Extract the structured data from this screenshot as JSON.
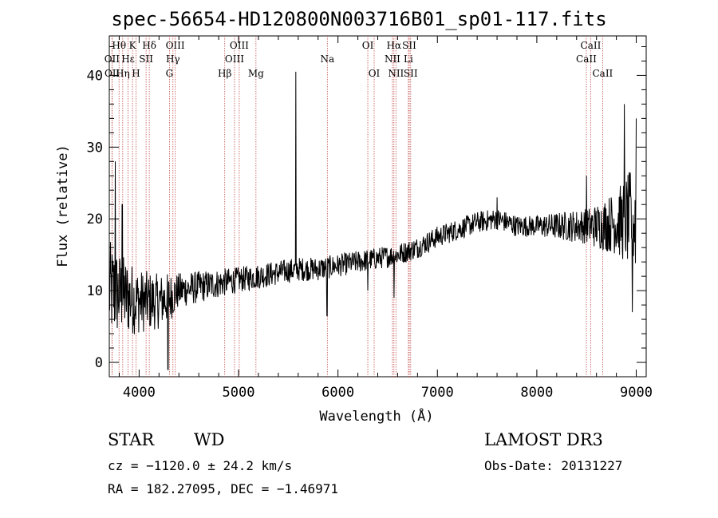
{
  "chart_data": {
    "type": "line",
    "title": "spec-56654-HD120800N003716B01_sp01-117.fits",
    "xlabel": "Wavelength (Å)",
    "ylabel": "Flux (relative)",
    "xlim": [
      3700,
      9100
    ],
    "ylim": [
      -2,
      45.5
    ],
    "xticks": [
      4000,
      5000,
      6000,
      7000,
      8000,
      9000
    ],
    "xtick_labels": [
      "4000",
      "5000",
      "6000",
      "7000",
      "8000",
      "9000"
    ],
    "yticks": [
      0,
      10,
      20,
      30,
      40
    ],
    "ytick_labels": [
      "0",
      "10",
      "20",
      "30",
      "40"
    ],
    "series": [
      {
        "name": "flux",
        "color": "#000000",
        "continuum": [
          [
            3700,
            10
          ],
          [
            3800,
            9.5
          ],
          [
            3900,
            9
          ],
          [
            4000,
            8.5
          ],
          [
            4100,
            8.5
          ],
          [
            4200,
            8.5
          ],
          [
            4300,
            9
          ],
          [
            4400,
            10
          ],
          [
            4600,
            10.5
          ],
          [
            4800,
            11
          ],
          [
            5000,
            11.5
          ],
          [
            5200,
            12
          ],
          [
            5400,
            12.5
          ],
          [
            5600,
            13
          ],
          [
            5800,
            13
          ],
          [
            6000,
            13.5
          ],
          [
            6200,
            14
          ],
          [
            6400,
            14.5
          ],
          [
            6600,
            15
          ],
          [
            6800,
            16
          ],
          [
            7000,
            17.5
          ],
          [
            7200,
            18.5
          ],
          [
            7400,
            19.5
          ],
          [
            7600,
            20
          ],
          [
            7800,
            19
          ],
          [
            8000,
            19
          ],
          [
            8200,
            19
          ],
          [
            8400,
            19
          ],
          [
            8600,
            19
          ],
          [
            8800,
            19.5
          ],
          [
            9000,
            20
          ]
        ],
        "noise_envelope": [
          [
            3700,
            7
          ],
          [
            3800,
            6
          ],
          [
            4000,
            4.5
          ],
          [
            4300,
            3.5
          ],
          [
            4400,
            2.5
          ],
          [
            5000,
            1.8
          ],
          [
            6000,
            1.6
          ],
          [
            7000,
            1.5
          ],
          [
            8000,
            1.5
          ],
          [
            8500,
            2.5
          ],
          [
            8800,
            4.5
          ],
          [
            9000,
            8
          ]
        ],
        "features": [
          {
            "x": 3760,
            "y": 28
          },
          {
            "x": 3830,
            "y": 22
          },
          {
            "x": 4290,
            "y": -1
          },
          {
            "x": 5577,
            "y": 40.5
          },
          {
            "x": 5890,
            "y": 6.5
          },
          {
            "x": 6300,
            "y": 10
          },
          {
            "x": 6563,
            "y": 9
          },
          {
            "x": 7600,
            "y": 23
          },
          {
            "x": 8500,
            "y": 26
          },
          {
            "x": 8880,
            "y": 36
          },
          {
            "x": 8960,
            "y": 7
          },
          {
            "x": 9000,
            "y": 34
          }
        ]
      }
    ],
    "lines": [
      {
        "label": "Hθ",
        "wavelength": 3798,
        "row": 0
      },
      {
        "label": "OII",
        "wavelength": 3727,
        "row": 1
      },
      {
        "label": "OII",
        "wavelength": 3729,
        "row": 2
      },
      {
        "label": "Hη",
        "wavelength": 3835,
        "row": 2
      },
      {
        "label": "Hε",
        "wavelength": 3889,
        "row": 1
      },
      {
        "label": "K",
        "wavelength": 3934,
        "row": 0
      },
      {
        "label": "SII",
        "wavelength": 4070,
        "row": 1
      },
      {
        "label": "H",
        "wavelength": 3969,
        "row": 2
      },
      {
        "label": "Hδ",
        "wavelength": 4102,
        "row": 0
      },
      {
        "label": "OIII",
        "wavelength": 4363,
        "row": 0
      },
      {
        "label": "Hγ",
        "wavelength": 4340,
        "row": 1
      },
      {
        "label": "G",
        "wavelength": 4305,
        "row": 2
      },
      {
        "label": "Hβ",
        "wavelength": 4861,
        "row": 2
      },
      {
        "label": "OIII",
        "wavelength": 5007,
        "row": 0
      },
      {
        "label": "OIII",
        "wavelength": 4959,
        "row": 1
      },
      {
        "label": "Mg",
        "wavelength": 5175,
        "row": 2
      },
      {
        "label": "Na",
        "wavelength": 5893,
        "row": 1
      },
      {
        "label": "OI",
        "wavelength": 6300,
        "row": 0
      },
      {
        "label": "OI",
        "wavelength": 6364,
        "row": 2
      },
      {
        "label": "Hα",
        "wavelength": 6563,
        "row": 0
      },
      {
        "label": "NII",
        "wavelength": 6548,
        "row": 1
      },
      {
        "label": "NII",
        "wavelength": 6583,
        "row": 2
      },
      {
        "label": "SII",
        "wavelength": 6717,
        "row": 0
      },
      {
        "label": "Li",
        "wavelength": 6708,
        "row": 1
      },
      {
        "label": "SII",
        "wavelength": 6731,
        "row": 2
      },
      {
        "label": "CaII",
        "wavelength": 8542,
        "row": 0
      },
      {
        "label": "CaII",
        "wavelength": 8498,
        "row": 1
      },
      {
        "label": "CaII",
        "wavelength": 8662,
        "row": 2
      }
    ]
  },
  "info": {
    "object_class": "STAR",
    "subclass": "WD",
    "survey": "LAMOST DR3",
    "cz_line": "cz = −1120.0 ± 24.2 km/s",
    "obs_line": "Obs-Date: 20131227",
    "radec_line": "RA = 182.27095, DEC =  −1.46971"
  }
}
